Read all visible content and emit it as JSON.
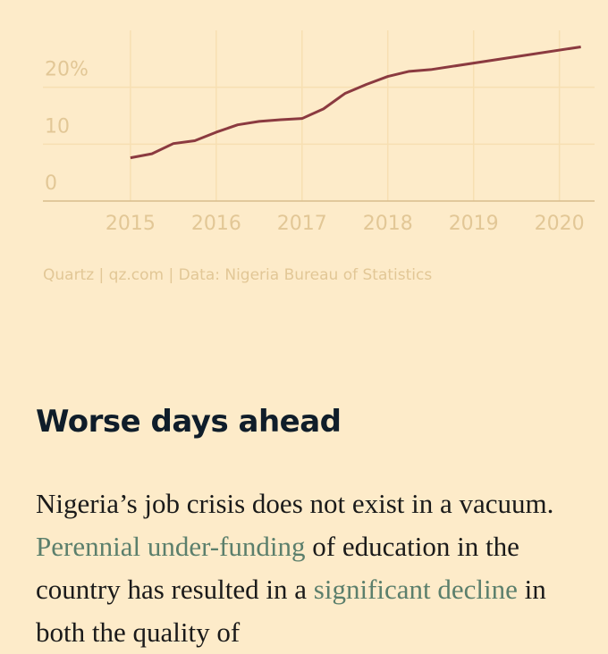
{
  "chart_data": {
    "type": "line",
    "x": [
      2015,
      2015.25,
      2015.5,
      2015.75,
      2016,
      2016.25,
      2016.5,
      2016.75,
      2017,
      2017.25,
      2017.5,
      2017.75,
      2018,
      2018.25,
      2018.5,
      2020.25
    ],
    "series": [
      {
        "color": "#8b3a40",
        "values": [
          7.6,
          8.3,
          10.1,
          10.6,
          12.1,
          13.4,
          14.0,
          14.3,
          14.5,
          16.2,
          18.9,
          20.5,
          21.9,
          22.8,
          23.1,
          27.1
        ]
      }
    ],
    "xlim": [
      2013.98,
      2020.41
    ],
    "xticks": [
      2015,
      2016,
      2017,
      2018,
      2019,
      2020
    ],
    "ylim": [
      0,
      30
    ],
    "yticks": [
      0,
      10,
      {
        "value": 20,
        "label": "20%"
      }
    ],
    "grid": true,
    "source": "Quartz | qz.com | Data: Nigeria Bureau of Statistics"
  },
  "article": {
    "heading": "Worse days ahead",
    "paragraph": [
      {
        "text": "Nigeria’s job crisis does not exist in a vacuum. "
      },
      {
        "text": "Perennial under-funding",
        "link": true
      },
      {
        "text": " of education in the country has resulted in a "
      },
      {
        "text": "significant decline",
        "link": true
      },
      {
        "text": " in both the quality of"
      }
    ]
  }
}
